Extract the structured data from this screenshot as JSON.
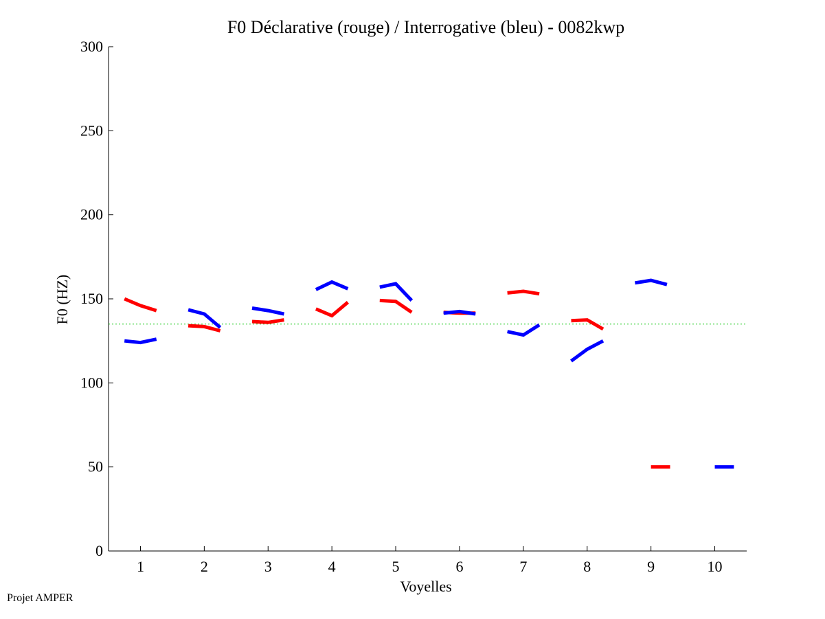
{
  "chart_data": {
    "type": "line",
    "title": "F0 Déclarative (rouge) / Interrogative (bleu) - 0082kwp",
    "xlabel": "Voyelles",
    "ylabel": "F0 (HZ)",
    "xlim": [
      0.5,
      10.5
    ],
    "ylim": [
      0,
      300
    ],
    "x_ticks": [
      "1",
      "2",
      "3",
      "4",
      "5",
      "6",
      "7",
      "8",
      "9",
      "10"
    ],
    "y_ticks": [
      "0",
      "50",
      "100",
      "150",
      "200",
      "250",
      "300"
    ],
    "reference_line": {
      "value": 135,
      "color": "#22cc22",
      "style": "dotted"
    },
    "series": [
      {
        "name": "Déclarative",
        "color": "#ff0000",
        "segments": [
          {
            "voyelle": 1,
            "values": [
              150,
              146,
              143
            ]
          },
          {
            "voyelle": 2,
            "values": [
              134,
              133.5,
              131
            ]
          },
          {
            "voyelle": 3,
            "values": [
              136.5,
              136,
              137.5
            ]
          },
          {
            "voyelle": 4,
            "values": [
              144,
              140,
              148
            ]
          },
          {
            "voyelle": 5,
            "values": [
              149,
              148.5,
              142
            ]
          },
          {
            "voyelle": 6,
            "values": [
              142,
              141.5,
              141.5
            ]
          },
          {
            "voyelle": 7,
            "values": [
              153.5,
              154.5,
              153
            ]
          },
          {
            "voyelle": 8,
            "values": [
              137,
              137.5,
              132
            ]
          }
        ]
      },
      {
        "name": "Interrogative",
        "color": "#0000ff",
        "segments": [
          {
            "voyelle": 1,
            "values": [
              125,
              124,
              126
            ]
          },
          {
            "voyelle": 2,
            "values": [
              143.5,
              141,
              133
            ]
          },
          {
            "voyelle": 3,
            "values": [
              144.5,
              143,
              141
            ]
          },
          {
            "voyelle": 4,
            "values": [
              155.5,
              160,
              156
            ]
          },
          {
            "voyelle": 5,
            "values": [
              157,
              159,
              149
            ]
          },
          {
            "voyelle": 6,
            "values": [
              141.5,
              142.5,
              141
            ]
          },
          {
            "voyelle": 7,
            "values": [
              130.5,
              128.5,
              134.5
            ]
          },
          {
            "voyelle": 8,
            "values": [
              113,
              120,
              125
            ]
          },
          {
            "voyelle": 9,
            "values": [
              159.5,
              161,
              158.5
            ]
          }
        ]
      }
    ],
    "legend_marks": [
      {
        "name": "Déclarative",
        "color": "#ff0000",
        "x_range": [
          9,
          9.3
        ],
        "value": 50
      },
      {
        "name": "Interrogative",
        "color": "#0000ff",
        "x_range": [
          10,
          10.3
        ],
        "value": 50
      }
    ]
  },
  "footer": "Projet AMPER"
}
